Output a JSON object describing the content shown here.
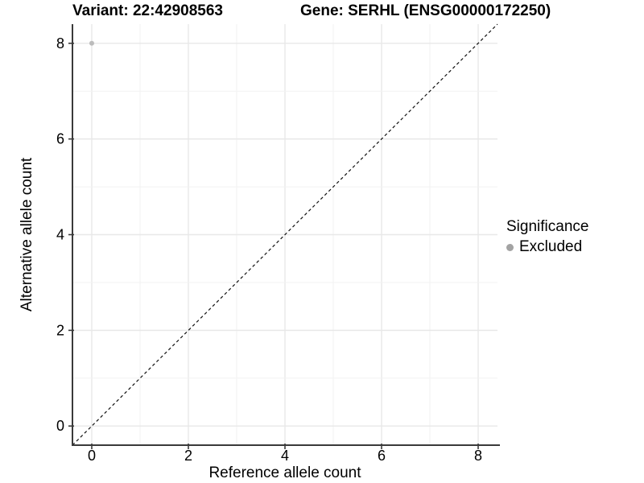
{
  "chart_data": {
    "type": "scatter",
    "title_variant": "Variant: 22:42908563",
    "title_gene": "Gene: SERHL (ENSG00000172250)",
    "xlabel": "Reference allele count",
    "ylabel": "Alternative allele count",
    "xlim": [
      -0.4,
      8.4
    ],
    "ylim": [
      -0.4,
      8.4
    ],
    "x_ticks": [
      0,
      2,
      4,
      6,
      8
    ],
    "y_ticks": [
      0,
      2,
      4,
      6,
      8
    ],
    "grid": {
      "interval": 1,
      "major_ticks_only_color": "#e8e8e8",
      "minor_color": "#f2f2f2",
      "on": true
    },
    "points": [
      {
        "x": 0,
        "y": 8,
        "significance": "Excluded",
        "color": "#bcbcbc"
      }
    ],
    "identity_line": {
      "slope": 1,
      "intercept": 0,
      "style": "dashed",
      "color": "#111111"
    },
    "legend": {
      "title": "Significance",
      "position": "right",
      "entries": [
        {
          "label": "Excluded",
          "marker": "circle",
          "color": "#a3a3a3"
        }
      ]
    },
    "colors": {
      "background": "#ffffff",
      "axis_line": "#3a3a3a",
      "tick_text": "#000000"
    }
  }
}
